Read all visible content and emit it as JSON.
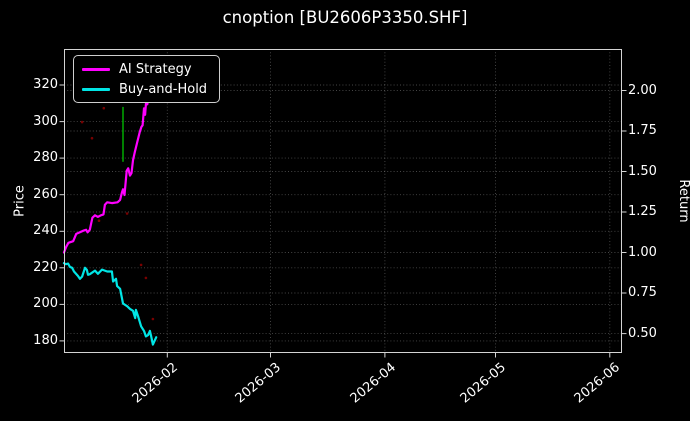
{
  "title": "cnoption [BU2606P3350.SHF]",
  "legend": {
    "position": "top-left"
  },
  "chart_data": {
    "type": "line",
    "background": "#000000",
    "text_color": "#ffffff",
    "grid": {
      "on": true,
      "color": "rgba(255,255,255,0.28)",
      "style": "dotted"
    },
    "spine_color": "#d4d4d4",
    "x_axis": {
      "start_date": "2026-01-04",
      "unit": "days_since_start",
      "range_days": [
        0,
        151.3
      ],
      "ticks": [
        {
          "day": 28,
          "label": "2026-02"
        },
        {
          "day": 56,
          "label": "2026-03"
        },
        {
          "day": 87,
          "label": "2026-04"
        },
        {
          "day": 117,
          "label": "2026-05"
        },
        {
          "day": 148,
          "label": "2026-06"
        }
      ]
    },
    "left_axis": {
      "label": "Price",
      "range": [
        173.4,
        339.7
      ],
      "ticks": [
        320,
        300,
        280,
        260,
        240,
        220,
        200,
        180
      ]
    },
    "right_axis": {
      "label": "Return",
      "range": [
        0.38,
        2.256
      ],
      "ticks": [
        "2.00",
        "1.75",
        "1.50",
        "1.25",
        "1.00",
        "0.75",
        "0.50"
      ]
    },
    "series": [
      {
        "name": "AI Strategy",
        "color": "#ff00ff",
        "axis": "right",
        "line_width": 2.2,
        "points": [
          [
            0,
            1.0
          ],
          [
            0.6,
            1.035
          ],
          [
            1.2,
            1.06
          ],
          [
            2.5,
            1.07
          ],
          [
            3.3,
            1.115
          ],
          [
            4.3,
            1.125
          ],
          [
            5.2,
            1.135
          ],
          [
            6.0,
            1.14
          ],
          [
            6.4,
            1.125
          ],
          [
            7.0,
            1.14
          ],
          [
            7.7,
            1.215
          ],
          [
            8.4,
            1.23
          ],
          [
            9.2,
            1.22
          ],
          [
            10.0,
            1.23
          ],
          [
            10.7,
            1.235
          ],
          [
            11.1,
            1.295
          ],
          [
            11.7,
            1.31
          ],
          [
            13.0,
            1.305
          ],
          [
            14.5,
            1.31
          ],
          [
            15.2,
            1.325
          ],
          [
            15.7,
            1.37
          ],
          [
            16.0,
            1.39
          ],
          [
            16.4,
            1.355
          ],
          [
            17.0,
            1.505
          ],
          [
            17.4,
            1.52
          ],
          [
            17.9,
            1.475
          ],
          [
            18.3,
            1.49
          ],
          [
            18.7,
            1.57
          ],
          [
            19.2,
            1.62
          ],
          [
            19.8,
            1.675
          ],
          [
            20.5,
            1.74
          ],
          [
            21.0,
            1.775
          ],
          [
            21.3,
            1.785
          ],
          [
            21.7,
            1.89
          ],
          [
            22.0,
            1.85
          ],
          [
            22.3,
            1.94
          ],
          [
            22.6,
            1.915
          ],
          [
            22.9,
            1.96
          ],
          [
            23.3,
            2.08
          ]
        ]
      },
      {
        "name": "Buy-and-Hold",
        "color": "#00e5e5",
        "axis": "left",
        "line_width": 2.2,
        "points": [
          [
            0,
            222.5
          ],
          [
            0.5,
            222.0
          ],
          [
            1.1,
            222.3
          ],
          [
            1.6,
            220.5
          ],
          [
            2.2,
            220.0
          ],
          [
            2.7,
            218.0
          ],
          [
            3.8,
            215.5
          ],
          [
            4.3,
            214.0
          ],
          [
            4.9,
            215.2
          ],
          [
            5.7,
            220.0
          ],
          [
            6.2,
            218.8
          ],
          [
            6.5,
            216.2
          ],
          [
            7.0,
            216.5
          ],
          [
            7.6,
            217.3
          ],
          [
            8.4,
            218.5
          ],
          [
            9.2,
            216.7
          ],
          [
            10.3,
            219.0
          ],
          [
            11.7,
            218.0
          ],
          [
            13.0,
            218.0
          ],
          [
            13.3,
            212.5
          ],
          [
            14.1,
            214.0
          ],
          [
            14.4,
            210.0
          ],
          [
            15.2,
            208.5
          ],
          [
            16.0,
            200.5
          ],
          [
            17.1,
            199.0
          ],
          [
            17.9,
            197.5
          ],
          [
            18.7,
            196.5
          ],
          [
            19.3,
            192.5
          ],
          [
            19.5,
            197.0
          ],
          [
            20.1,
            193.5
          ],
          [
            20.9,
            188.0
          ],
          [
            21.7,
            185.5
          ],
          [
            22.2,
            182.5
          ],
          [
            22.8,
            183.2
          ],
          [
            23.3,
            185.5
          ],
          [
            23.6,
            183.0
          ],
          [
            24.1,
            178.0
          ],
          [
            25.0,
            182.0
          ]
        ]
      }
    ],
    "annotations": {
      "buy_signal_line": {
        "day": 16.0,
        "price_from": 278,
        "price_to": 308,
        "color": "#00a000"
      },
      "red_dots": {
        "color": "#7a0000",
        "points_day_price": [
          [
            4.9,
            299.7
          ],
          [
            7.6,
            290.9
          ],
          [
            10.8,
            307.3
          ],
          [
            9.5,
            245.8
          ],
          [
            17.1,
            249.7
          ],
          [
            20.9,
            221.6
          ],
          [
            22.2,
            214.5
          ],
          [
            24.1,
            192.0
          ]
        ]
      }
    }
  }
}
